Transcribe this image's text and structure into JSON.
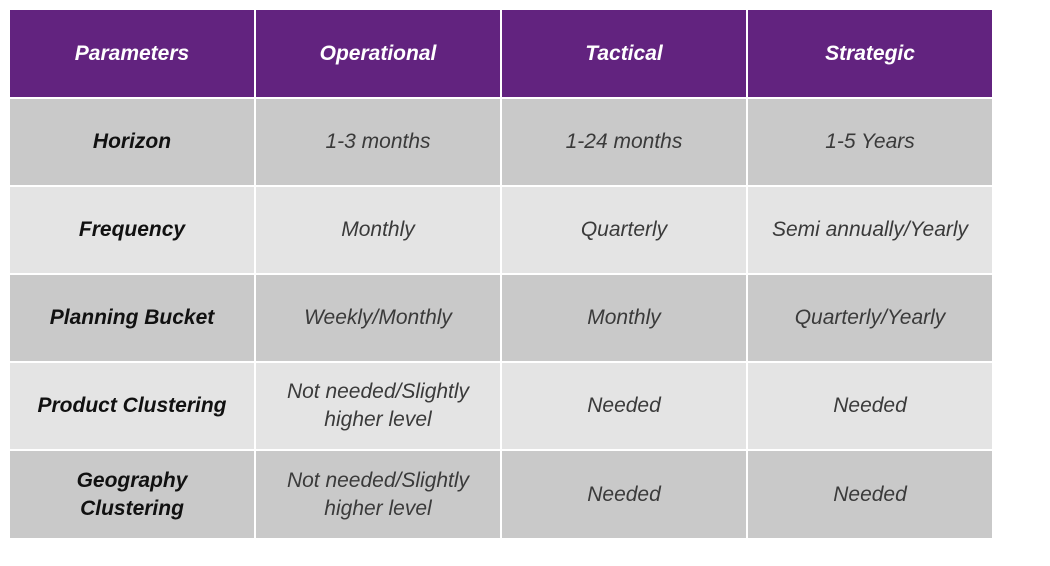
{
  "table": {
    "headers": [
      "Parameters",
      "Operational",
      "Tactical",
      "Strategic"
    ],
    "rows": [
      {
        "parameter": "Horizon",
        "operational": "1-3 months",
        "tactical": "1-24 months",
        "strategic": "1-5 Years"
      },
      {
        "parameter": "Frequency",
        "operational": "Monthly",
        "tactical": "Quarterly",
        "strategic": "Semi annually/Yearly"
      },
      {
        "parameter": "Planning Bucket",
        "operational": "Weekly/Monthly",
        "tactical": "Monthly",
        "strategic": "Quarterly/Yearly"
      },
      {
        "parameter": "Product Clustering",
        "operational": "Not needed/Slightly higher level",
        "tactical": "Needed",
        "strategic": "Needed"
      },
      {
        "parameter": "Geography Clustering",
        "operational": "Not needed/Slightly higher level",
        "tactical": "Needed",
        "strategic": "Needed"
      }
    ]
  },
  "colors": {
    "header_bg": "#62237f",
    "header_text": "#ffffff",
    "row_dark": "#c9c9c9",
    "row_light": "#e4e4e4"
  }
}
